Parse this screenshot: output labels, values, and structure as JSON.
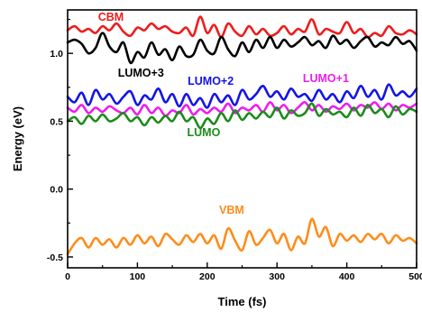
{
  "chart_data": {
    "type": "line",
    "title": "",
    "xlabel": "Time (fs)",
    "ylabel": "Energy (eV)",
    "xlim": [
      0,
      500
    ],
    "ylim": [
      -0.58,
      1.32
    ],
    "xticks": [
      0,
      100,
      200,
      300,
      400,
      500
    ],
    "yticks": [
      -0.5,
      0.0,
      0.5,
      1.0
    ],
    "xtick_labels": [
      "0",
      "100",
      "200",
      "300",
      "400",
      "500"
    ],
    "ytick_labels": [
      "-0.5",
      "0.0",
      "0.5",
      "1.0"
    ],
    "grid": false,
    "legend": "none",
    "series": [
      {
        "name": "CBM",
        "color": "#ee1c1c",
        "label_pos": [
          62,
          1.24
        ],
        "points": [
          [
            0,
            1.17
          ],
          [
            10,
            1.2
          ],
          [
            20,
            1.16
          ],
          [
            30,
            1.18
          ],
          [
            40,
            1.15
          ],
          [
            50,
            1.2
          ],
          [
            60,
            1.17
          ],
          [
            70,
            1.22
          ],
          [
            80,
            1.16
          ],
          [
            90,
            1.13
          ],
          [
            100,
            1.19
          ],
          [
            110,
            1.17
          ],
          [
            120,
            1.22
          ],
          [
            130,
            1.18
          ],
          [
            140,
            1.2
          ],
          [
            150,
            1.16
          ],
          [
            160,
            1.15
          ],
          [
            170,
            1.19
          ],
          [
            180,
            1.13
          ],
          [
            190,
            1.27
          ],
          [
            200,
            1.15
          ],
          [
            210,
            1.21
          ],
          [
            220,
            1.12
          ],
          [
            230,
            1.22
          ],
          [
            240,
            1.16
          ],
          [
            250,
            1.13
          ],
          [
            260,
            1.2
          ],
          [
            270,
            1.14
          ],
          [
            280,
            1.18
          ],
          [
            290,
            1.13
          ],
          [
            300,
            1.15
          ],
          [
            310,
            1.2
          ],
          [
            320,
            1.14
          ],
          [
            330,
            1.18
          ],
          [
            340,
            1.16
          ],
          [
            350,
            1.25
          ],
          [
            360,
            1.14
          ],
          [
            370,
            1.18
          ],
          [
            380,
            1.16
          ],
          [
            390,
            1.15
          ],
          [
            400,
            1.23
          ],
          [
            410,
            1.15
          ],
          [
            420,
            1.18
          ],
          [
            430,
            1.12
          ],
          [
            440,
            1.15
          ],
          [
            450,
            1.13
          ],
          [
            460,
            1.2
          ],
          [
            470,
            1.15
          ],
          [
            480,
            1.14
          ],
          [
            490,
            1.17
          ],
          [
            500,
            1.14
          ]
        ]
      },
      {
        "name": "LUMO+3",
        "color": "#000000",
        "label_pos": [
          105,
          0.83
        ],
        "points": [
          [
            0,
            1.08
          ],
          [
            10,
            1.1
          ],
          [
            20,
            1.07
          ],
          [
            30,
            1.0
          ],
          [
            40,
            1.04
          ],
          [
            50,
            1.15
          ],
          [
            60,
            1.05
          ],
          [
            70,
            1.01
          ],
          [
            80,
            1.08
          ],
          [
            90,
            0.93
          ],
          [
            100,
            1.01
          ],
          [
            110,
            0.97
          ],
          [
            120,
            1.08
          ],
          [
            130,
            0.99
          ],
          [
            140,
            1.03
          ],
          [
            150,
            0.95
          ],
          [
            160,
            1.05
          ],
          [
            170,
            0.98
          ],
          [
            180,
            0.99
          ],
          [
            190,
            1.1
          ],
          [
            200,
            1.02
          ],
          [
            210,
            1.0
          ],
          [
            220,
            1.12
          ],
          [
            230,
            1.03
          ],
          [
            240,
            0.98
          ],
          [
            250,
            1.08
          ],
          [
            260,
            1.01
          ],
          [
            270,
            1.1
          ],
          [
            280,
            1.04
          ],
          [
            290,
            1.12
          ],
          [
            300,
            1.04
          ],
          [
            310,
            1.1
          ],
          [
            320,
            1.05
          ],
          [
            330,
            1.08
          ],
          [
            340,
            1.12
          ],
          [
            350,
            1.06
          ],
          [
            360,
            1.09
          ],
          [
            370,
            1.04
          ],
          [
            380,
            1.13
          ],
          [
            390,
            1.07
          ],
          [
            400,
            1.1
          ],
          [
            410,
            1.04
          ],
          [
            420,
            1.09
          ],
          [
            430,
            1.12
          ],
          [
            440,
            1.05
          ],
          [
            450,
            1.08
          ],
          [
            460,
            1.06
          ],
          [
            470,
            1.12
          ],
          [
            480,
            1.07
          ],
          [
            490,
            1.09
          ],
          [
            500,
            1.02
          ]
        ]
      },
      {
        "name": "LUMO+2",
        "color": "#1414e6",
        "label_pos": [
          205,
          0.77
        ],
        "points": [
          [
            0,
            0.68
          ],
          [
            10,
            0.64
          ],
          [
            20,
            0.71
          ],
          [
            30,
            0.62
          ],
          [
            40,
            0.73
          ],
          [
            50,
            0.66
          ],
          [
            60,
            0.7
          ],
          [
            70,
            0.63
          ],
          [
            80,
            0.68
          ],
          [
            90,
            0.72
          ],
          [
            100,
            0.62
          ],
          [
            110,
            0.69
          ],
          [
            120,
            0.66
          ],
          [
            130,
            0.74
          ],
          [
            140,
            0.64
          ],
          [
            150,
            0.7
          ],
          [
            160,
            0.61
          ],
          [
            170,
            0.7
          ],
          [
            180,
            0.62
          ],
          [
            190,
            0.67
          ],
          [
            200,
            0.6
          ],
          [
            210,
            0.7
          ],
          [
            220,
            0.64
          ],
          [
            230,
            0.69
          ],
          [
            240,
            0.62
          ],
          [
            250,
            0.73
          ],
          [
            260,
            0.66
          ],
          [
            270,
            0.7
          ],
          [
            280,
            0.76
          ],
          [
            290,
            0.68
          ],
          [
            300,
            0.72
          ],
          [
            310,
            0.66
          ],
          [
            320,
            0.74
          ],
          [
            330,
            0.68
          ],
          [
            340,
            0.7
          ],
          [
            350,
            0.65
          ],
          [
            360,
            0.73
          ],
          [
            370,
            0.66
          ],
          [
            380,
            0.7
          ],
          [
            390,
            0.64
          ],
          [
            400,
            0.72
          ],
          [
            410,
            0.67
          ],
          [
            420,
            0.76
          ],
          [
            430,
            0.68
          ],
          [
            440,
            0.73
          ],
          [
            450,
            0.66
          ],
          [
            460,
            0.77
          ],
          [
            470,
            0.69
          ],
          [
            480,
            0.72
          ],
          [
            490,
            0.68
          ],
          [
            500,
            0.74
          ]
        ]
      },
      {
        "name": "LUMO+1",
        "color": "#ee1cee",
        "label_pos": [
          370,
          0.79
        ],
        "points": [
          [
            0,
            0.6
          ],
          [
            10,
            0.57
          ],
          [
            20,
            0.62
          ],
          [
            30,
            0.56
          ],
          [
            40,
            0.6
          ],
          [
            50,
            0.57
          ],
          [
            60,
            0.61
          ],
          [
            70,
            0.58
          ],
          [
            80,
            0.56
          ],
          [
            90,
            0.6
          ],
          [
            100,
            0.55
          ],
          [
            110,
            0.62
          ],
          [
            120,
            0.56
          ],
          [
            130,
            0.6
          ],
          [
            140,
            0.54
          ],
          [
            150,
            0.58
          ],
          [
            160,
            0.56
          ],
          [
            170,
            0.62
          ],
          [
            180,
            0.55
          ],
          [
            190,
            0.59
          ],
          [
            200,
            0.56
          ],
          [
            210,
            0.6
          ],
          [
            220,
            0.57
          ],
          [
            230,
            0.63
          ],
          [
            240,
            0.56
          ],
          [
            250,
            0.6
          ],
          [
            260,
            0.58
          ],
          [
            270,
            0.62
          ],
          [
            280,
            0.57
          ],
          [
            290,
            0.64
          ],
          [
            300,
            0.58
          ],
          [
            310,
            0.62
          ],
          [
            320,
            0.56
          ],
          [
            330,
            0.6
          ],
          [
            340,
            0.64
          ],
          [
            350,
            0.58
          ],
          [
            360,
            0.62
          ],
          [
            370,
            0.57
          ],
          [
            380,
            0.61
          ],
          [
            390,
            0.59
          ],
          [
            400,
            0.63
          ],
          [
            410,
            0.58
          ],
          [
            420,
            0.62
          ],
          [
            430,
            0.6
          ],
          [
            440,
            0.64
          ],
          [
            450,
            0.59
          ],
          [
            460,
            0.63
          ],
          [
            470,
            0.58
          ],
          [
            480,
            0.62
          ],
          [
            490,
            0.6
          ],
          [
            500,
            0.63
          ]
        ]
      },
      {
        "name": "LUMO",
        "color": "#1a8c1a",
        "label_pos": [
          195,
          0.39
        ],
        "points": [
          [
            0,
            0.5
          ],
          [
            10,
            0.53
          ],
          [
            20,
            0.48
          ],
          [
            30,
            0.54
          ],
          [
            40,
            0.5
          ],
          [
            50,
            0.55
          ],
          [
            60,
            0.5
          ],
          [
            70,
            0.52
          ],
          [
            80,
            0.56
          ],
          [
            90,
            0.5
          ],
          [
            100,
            0.53
          ],
          [
            110,
            0.47
          ],
          [
            120,
            0.53
          ],
          [
            130,
            0.49
          ],
          [
            140,
            0.54
          ],
          [
            150,
            0.5
          ],
          [
            160,
            0.57
          ],
          [
            170,
            0.5
          ],
          [
            180,
            0.53
          ],
          [
            190,
            0.45
          ],
          [
            200,
            0.52
          ],
          [
            210,
            0.48
          ],
          [
            220,
            0.56
          ],
          [
            230,
            0.5
          ],
          [
            240,
            0.58
          ],
          [
            250,
            0.51
          ],
          [
            260,
            0.56
          ],
          [
            270,
            0.52
          ],
          [
            280,
            0.57
          ],
          [
            290,
            0.53
          ],
          [
            300,
            0.6
          ],
          [
            310,
            0.52
          ],
          [
            320,
            0.58
          ],
          [
            330,
            0.54
          ],
          [
            340,
            0.56
          ],
          [
            350,
            0.63
          ],
          [
            360,
            0.54
          ],
          [
            370,
            0.59
          ],
          [
            380,
            0.55
          ],
          [
            390,
            0.57
          ],
          [
            400,
            0.53
          ],
          [
            410,
            0.6
          ],
          [
            420,
            0.54
          ],
          [
            430,
            0.62
          ],
          [
            440,
            0.56
          ],
          [
            450,
            0.59
          ],
          [
            460,
            0.53
          ],
          [
            470,
            0.61
          ],
          [
            480,
            0.55
          ],
          [
            490,
            0.59
          ],
          [
            500,
            0.57
          ]
        ]
      },
      {
        "name": "VBM",
        "color": "#ff8c1a",
        "label_pos": [
          235,
          -0.18
        ],
        "points": [
          [
            0,
            -0.48
          ],
          [
            10,
            -0.4
          ],
          [
            20,
            -0.36
          ],
          [
            30,
            -0.43
          ],
          [
            40,
            -0.36
          ],
          [
            50,
            -0.41
          ],
          [
            60,
            -0.37
          ],
          [
            70,
            -0.43
          ],
          [
            80,
            -0.36
          ],
          [
            90,
            -0.41
          ],
          [
            100,
            -0.34
          ],
          [
            110,
            -0.4
          ],
          [
            120,
            -0.35
          ],
          [
            130,
            -0.42
          ],
          [
            140,
            -0.33
          ],
          [
            150,
            -0.37
          ],
          [
            160,
            -0.41
          ],
          [
            170,
            -0.34
          ],
          [
            180,
            -0.39
          ],
          [
            190,
            -0.33
          ],
          [
            200,
            -0.4
          ],
          [
            210,
            -0.34
          ],
          [
            220,
            -0.44
          ],
          [
            230,
            -0.29
          ],
          [
            240,
            -0.38
          ],
          [
            250,
            -0.45
          ],
          [
            260,
            -0.31
          ],
          [
            270,
            -0.41
          ],
          [
            280,
            -0.36
          ],
          [
            290,
            -0.3
          ],
          [
            300,
            -0.4
          ],
          [
            310,
            -0.33
          ],
          [
            320,
            -0.45
          ],
          [
            330,
            -0.35
          ],
          [
            340,
            -0.4
          ],
          [
            350,
            -0.22
          ],
          [
            360,
            -0.35
          ],
          [
            370,
            -0.28
          ],
          [
            380,
            -0.42
          ],
          [
            390,
            -0.33
          ],
          [
            400,
            -0.38
          ],
          [
            410,
            -0.34
          ],
          [
            420,
            -0.39
          ],
          [
            430,
            -0.33
          ],
          [
            440,
            -0.37
          ],
          [
            450,
            -0.33
          ],
          [
            460,
            -0.4
          ],
          [
            470,
            -0.34
          ],
          [
            480,
            -0.38
          ],
          [
            490,
            -0.36
          ],
          [
            500,
            -0.4
          ]
        ]
      }
    ]
  }
}
